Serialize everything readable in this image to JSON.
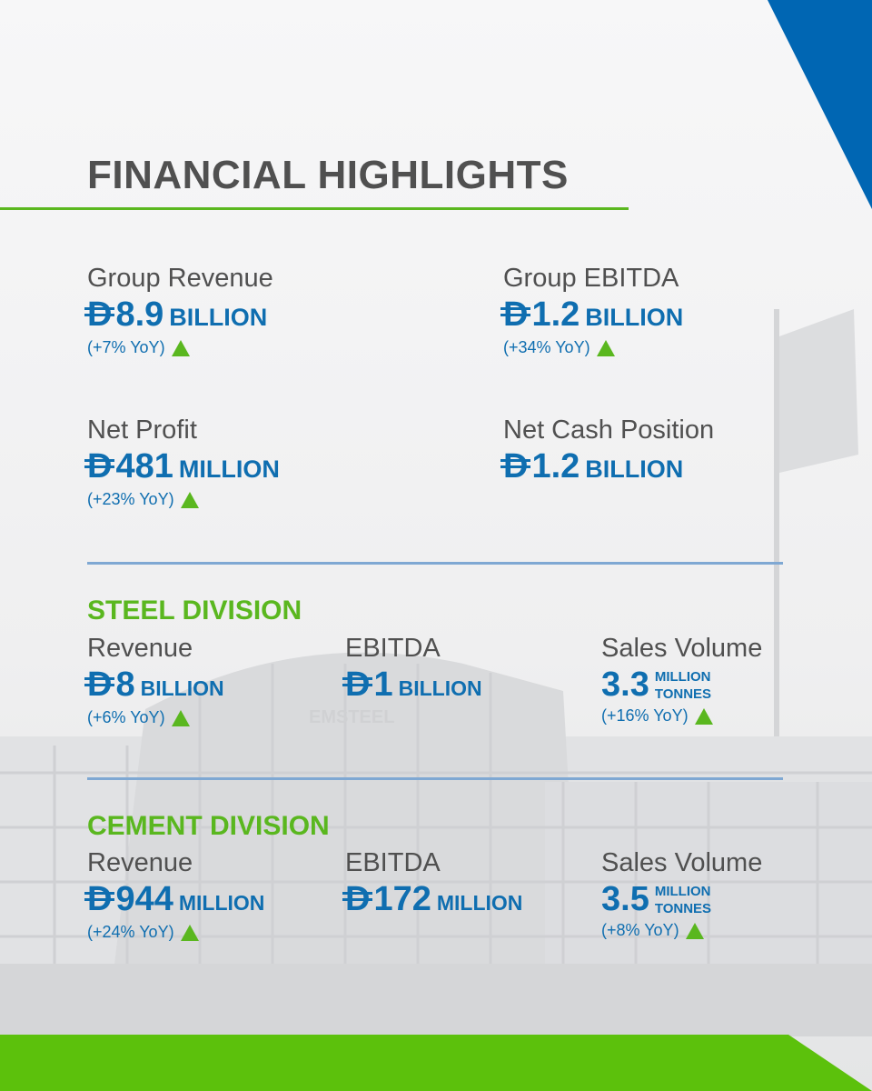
{
  "colors": {
    "accent_blue": "#0f6eb0",
    "accent_green": "#5ab71f",
    "heading_gray": "#505050",
    "corner_blue": "#0066b3"
  },
  "header": {
    "title": "FINANCIAL HIGHLIGHTS"
  },
  "group": {
    "revenue": {
      "label": "Group Revenue",
      "currency": "D",
      "amount": "8.9",
      "unit": "BILLION",
      "yoy": "(+7% YoY)"
    },
    "ebitda": {
      "label": "Group EBITDA",
      "currency": "D",
      "amount": "1.2",
      "unit": "BILLION",
      "yoy": "(+34% YoY)"
    },
    "net_profit": {
      "label": "Net Profit",
      "currency": "D",
      "amount": "481",
      "unit": "MILLION",
      "yoy": "(+23% YoY)"
    },
    "net_cash": {
      "label": "Net Cash Position",
      "currency": "D",
      "amount": "1.2",
      "unit": "BILLION"
    }
  },
  "steel": {
    "title": "STEEL DIVISION",
    "revenue": {
      "label": "Revenue",
      "currency": "D",
      "amount": "8",
      "unit": "BILLION",
      "yoy": "(+6% YoY)"
    },
    "ebitda": {
      "label": "EBITDA",
      "currency": "D",
      "amount": "1",
      "unit": "BILLION"
    },
    "sales": {
      "label": "Sales Volume",
      "amount": "3.3",
      "unit_top": "MILLION",
      "unit_bottom": "TONNES",
      "yoy": "(+16% YoY)"
    }
  },
  "cement": {
    "title": "CEMENT DIVISION",
    "revenue": {
      "label": "Revenue",
      "currency": "D",
      "amount": "944",
      "unit": "MILLION",
      "yoy": "(+24% YoY)"
    },
    "ebitda": {
      "label": "EBITDA",
      "currency": "D",
      "amount": "172",
      "unit": "MILLION"
    },
    "sales": {
      "label": "Sales Volume",
      "amount": "3.5",
      "unit_top": "MILLION",
      "unit_bottom": "TONNES",
      "yoy": "(+8% YoY)"
    }
  },
  "background": {
    "building_sign": "EMSTEEL"
  }
}
